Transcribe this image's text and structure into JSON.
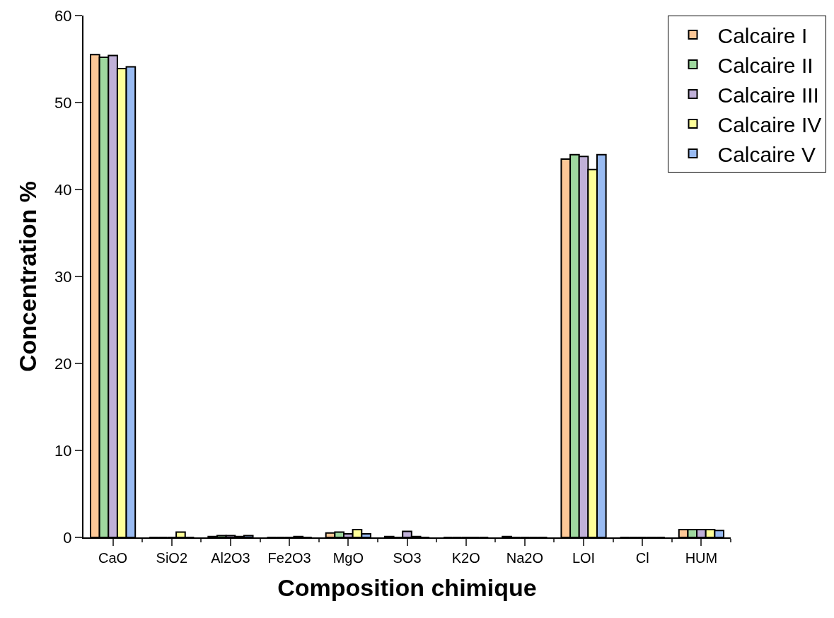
{
  "chart_data": {
    "type": "bar",
    "xlabel": "Composition chimique",
    "ylabel": "Concentration %",
    "categories": [
      "CaO",
      "SiO2",
      "Al2O3",
      "Fe2O3",
      "MgO",
      "SO3",
      "K2O",
      "Na2O",
      "LOI",
      "Cl",
      "HUM"
    ],
    "series": [
      {
        "name": "Calcaire I",
        "color": "#fdc897",
        "values": [
          55.5,
          0,
          0.1,
          0,
          0.5,
          0.1,
          0,
          0.1,
          43.5,
          0,
          0.9
        ]
      },
      {
        "name": "Calcaire II",
        "color": "#9fd89f",
        "values": [
          55.2,
          0,
          0.2,
          0,
          0.6,
          0,
          0,
          0,
          44.0,
          0,
          0.9
        ]
      },
      {
        "name": "Calcaire III",
        "color": "#c0b0d8",
        "values": [
          55.4,
          0,
          0.2,
          0,
          0.4,
          0.7,
          0,
          0,
          43.8,
          0,
          0.9
        ]
      },
      {
        "name": "Calcaire IV",
        "color": "#ffff99",
        "values": [
          53.9,
          0.6,
          0.1,
          0.1,
          0.9,
          0.1,
          0,
          0,
          42.3,
          0,
          0.9
        ]
      },
      {
        "name": "Calcaire V",
        "color": "#99bbf2",
        "values": [
          54.1,
          0,
          0.2,
          0,
          0.4,
          0,
          0,
          0,
          44.0,
          0,
          0.8
        ]
      }
    ],
    "ylim": [
      0,
      60
    ],
    "yticks": [
      0,
      10,
      20,
      30,
      40,
      50,
      60
    ],
    "grid": false,
    "legend": "top right"
  }
}
